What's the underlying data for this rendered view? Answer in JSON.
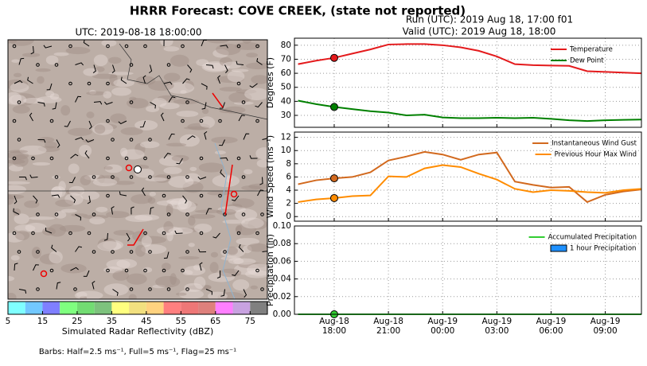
{
  "title": "HRRR Forecast: COVE CREEK, (state not reported)",
  "run_label": "Run (UTC): 2019 Aug 18, 17:00 f01",
  "valid_label": "Valid (UTC): 2019 Aug 18, 18:00",
  "map": {
    "title": "UTC: 2019-08-18 18:00:00"
  },
  "colorbar": {
    "label": "Simulated Radar Reflectivity (dBZ)",
    "lim": [
      5,
      80
    ],
    "ticks": [
      5,
      15,
      25,
      35,
      45,
      55,
      65,
      75
    ],
    "colors": [
      "#7fffff",
      "#72c8ff",
      "#7f7fff",
      "#7fff7f",
      "#72dc72",
      "#7dc27d",
      "#ffff7f",
      "#f2e07f",
      "#ffd27f",
      "#ff7f7f",
      "#ee7777",
      "#de807c",
      "#ff7fff",
      "#c8a2e0",
      "#808080"
    ]
  },
  "barbs_note": "Barbs: Half=2.5 ms⁻¹, Full=5 ms⁻¹, Flag=25 ms⁻¹",
  "time_axis": {
    "xlim": [
      -2.2,
      17
    ],
    "xticks": [
      {
        "value": 0,
        "label": "Aug-18\n18:00"
      },
      {
        "value": 3,
        "label": "Aug-18\n21:00"
      },
      {
        "value": 6,
        "label": "Aug-19\n00:00"
      },
      {
        "value": 9,
        "label": "Aug-19\n03:00"
      },
      {
        "value": 12,
        "label": "Aug-19\n06:00"
      },
      {
        "value": 15,
        "label": "Aug-19\n09:00"
      }
    ],
    "x": [
      -2,
      -1,
      0,
      1,
      2,
      3,
      4,
      5,
      6,
      7,
      8,
      9,
      10,
      11,
      12,
      13,
      14,
      15,
      16,
      17
    ],
    "marker_x": 0
  },
  "chart_data": [
    {
      "type": "line",
      "ylabel": "Degrees (F)",
      "ylim": [
        21.5,
        85
      ],
      "yticks": [
        30,
        40,
        50,
        60,
        70,
        80
      ],
      "grid": true,
      "legend": "upper right",
      "series": [
        {
          "name": "Temperature",
          "color": "#e41a1c",
          "values": [
            66.5,
            69,
            71,
            74,
            77,
            80.5,
            80.8,
            80.8,
            80,
            78.5,
            76,
            72,
            66.5,
            65.8,
            65.5,
            65.3,
            61.5,
            61,
            60.5,
            60
          ]
        },
        {
          "name": "Dew Point",
          "color": "#008000",
          "values": [
            40.5,
            38,
            36,
            34.5,
            33,
            32,
            30,
            30.5,
            28.5,
            28,
            28,
            28.3,
            28,
            28.3,
            27.5,
            26.5,
            26,
            26.5,
            26.8,
            27
          ]
        }
      ]
    },
    {
      "type": "line",
      "ylabel": "Wind Speed (ms⁻¹)",
      "ylim": [
        -0.7,
        12.8
      ],
      "yticks": [
        0,
        2,
        4,
        6,
        8,
        10,
        12
      ],
      "grid": true,
      "legend": "upper right",
      "series": [
        {
          "name": "Instantaneous Wind Gust",
          "color": "#d2691e",
          "values": [
            4.9,
            5.5,
            5.8,
            6.0,
            6.7,
            8.5,
            9.1,
            9.8,
            9.4,
            8.6,
            9.4,
            9.7,
            5.3,
            4.8,
            4.4,
            4.5,
            2.2,
            3.3,
            3.8,
            4.1
          ]
        },
        {
          "name": "Previous Hour Max Wind",
          "color": "#ff8c00",
          "values": [
            2.2,
            2.6,
            2.8,
            3.1,
            3.2,
            6.1,
            6.0,
            7.3,
            7.8,
            7.5,
            6.5,
            5.6,
            4.2,
            3.7,
            4.0,
            3.9,
            3.7,
            3.6,
            4.0,
            4.2
          ]
        }
      ]
    },
    {
      "type": "line",
      "ylabel": "Precipitation (in)",
      "ylim": [
        0,
        0.1
      ],
      "yticks": [
        {
          "value": 0,
          "label": "0.00"
        },
        {
          "value": 0.02,
          "label": "0.02"
        },
        {
          "value": 0.04,
          "label": "0.04"
        },
        {
          "value": 0.06,
          "label": "0.06"
        },
        {
          "value": 0.08,
          "label": "0.08"
        },
        {
          "value": 0.1,
          "label": "0.10"
        }
      ],
      "grid": true,
      "legend": "upper right",
      "series": [
        {
          "name": "Accumulated Precipitation",
          "color": "#32cd32",
          "values": [
            0,
            0,
            0,
            0,
            0,
            0,
            0,
            0,
            0,
            0,
            0,
            0,
            0,
            0,
            0,
            0,
            0,
            0,
            0,
            0
          ]
        },
        {
          "name": "1 hour Precipitation",
          "color": "#1e90ff",
          "kind": "bar",
          "values": [
            0,
            0,
            0,
            0,
            0,
            0,
            0,
            0,
            0,
            0,
            0,
            0,
            0,
            0,
            0,
            0,
            0,
            0,
            0,
            0
          ]
        }
      ]
    }
  ]
}
